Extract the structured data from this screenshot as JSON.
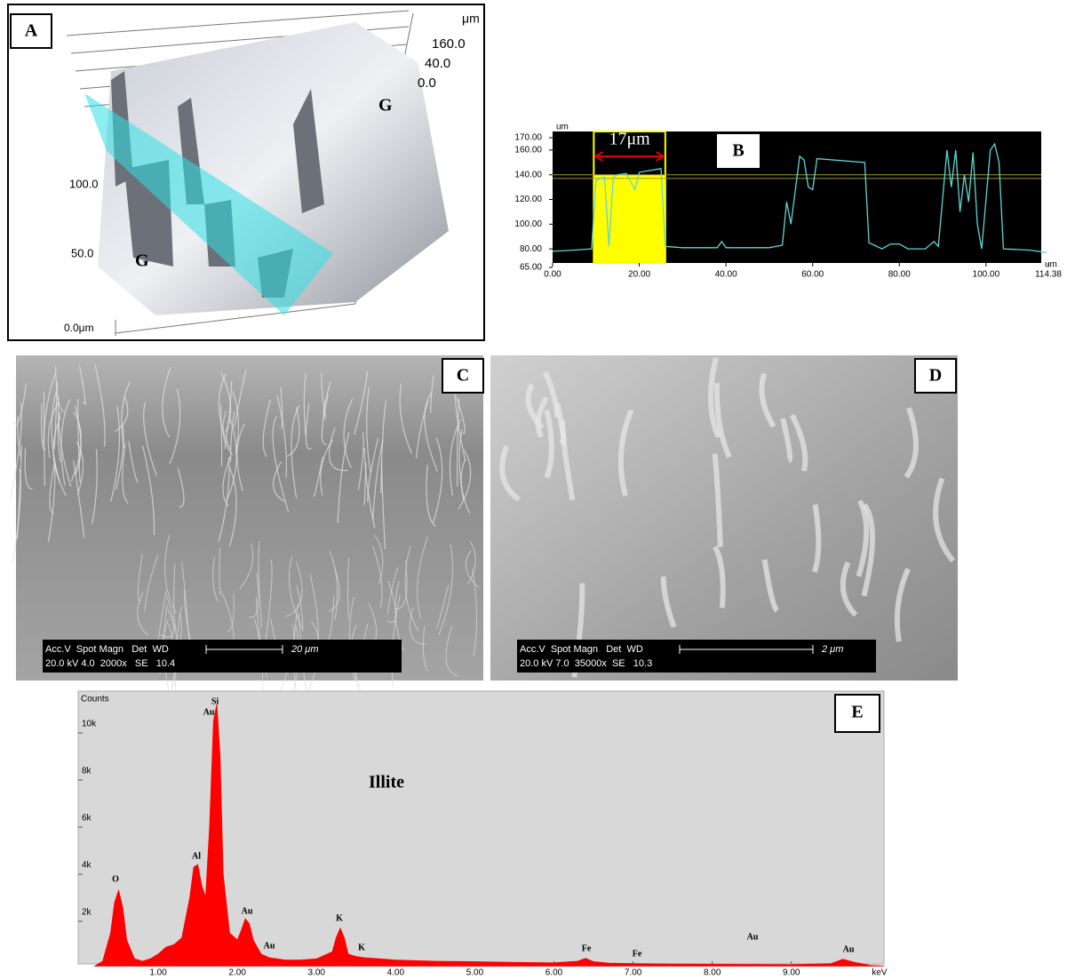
{
  "panels": {
    "A": {
      "label": "A",
      "unit": "μm",
      "zticks": [
        "160.0",
        "40.0",
        "0.0"
      ],
      "side_ticks": [
        "100.0",
        "50.0",
        "0.0μm"
      ],
      "grains": [
        "G",
        "G"
      ]
    },
    "C": {
      "label": "C",
      "info_header": "Acc.V  Spot Magn   Det  WD",
      "info_values": "20.0 kV 4.0  2000x   SE   10.4",
      "scale": "20 μm"
    },
    "D": {
      "label": "D",
      "info_header": "Acc.V  Spot Magn   Det  WD",
      "info_values": "20.0 kV 7.0  35000x  SE   10.3",
      "scale": "2 μm"
    }
  },
  "chart_data": [
    {
      "type": "line",
      "label": "B",
      "ylabel": "um",
      "xlabel": "um",
      "annotation": "17μm",
      "color": "#5fd6d6",
      "x": [
        0,
        5,
        9,
        10,
        11,
        12,
        13,
        14,
        15,
        17,
        19,
        20,
        25,
        26,
        30,
        38,
        39,
        40,
        50,
        53,
        54,
        55,
        57,
        58,
        59,
        60,
        61,
        72,
        73,
        76,
        78,
        80,
        82,
        86,
        88,
        89,
        91,
        92,
        93,
        94,
        95,
        96,
        97,
        98,
        99,
        101,
        102,
        103,
        104,
        110,
        114
      ],
      "values": [
        78,
        79,
        80,
        135,
        137,
        138,
        82,
        138,
        140,
        141,
        128,
        142,
        145,
        82,
        81,
        81,
        86,
        81,
        81,
        83,
        118,
        100,
        155,
        152,
        130,
        128,
        153,
        150,
        85,
        80,
        84,
        84,
        80,
        80,
        86,
        82,
        160,
        130,
        160,
        110,
        140,
        118,
        158,
        100,
        80,
        160,
        165,
        150,
        80,
        79,
        77
      ],
      "highlight": [
        9.5,
        26
      ],
      "highlight_color": "#ffff00",
      "reference_lines": [
        140,
        137
      ],
      "reference_color": "#9a9a30",
      "xlim": [
        0,
        114.38
      ],
      "ylim": [
        65,
        170
      ],
      "xticks": [
        {
          "value": 0,
          "label": "0.00"
        },
        {
          "value": 20,
          "label": "20.00"
        },
        {
          "value": 40,
          "label": "40.00"
        },
        {
          "value": 60,
          "label": "60.00"
        },
        {
          "value": 80,
          "label": "80.00"
        },
        {
          "value": 100,
          "label": "100.00"
        },
        114.38
      ],
      "yticks": [
        {
          "value": 65,
          "label": "65.00"
        },
        {
          "value": 80,
          "label": "80.00"
        },
        {
          "value": 100,
          "label": "100.00"
        },
        {
          "value": 120,
          "label": "120.00"
        },
        {
          "value": 140,
          "label": "140.00"
        },
        {
          "value": 160,
          "label": "160.00"
        },
        {
          "value": 170,
          "label": "170.00"
        }
      ]
    },
    {
      "type": "area",
      "label": "E",
      "ylabel": "Counts",
      "xlabel": "keV",
      "color": "#ff0000",
      "annotations": [
        "Si",
        "Au",
        "Al",
        "O",
        "Au",
        "Au",
        "K",
        "K",
        "Fe",
        "Fe",
        "Au",
        "Au",
        "Illite"
      ],
      "x": [
        0.2,
        0.3,
        0.4,
        0.45,
        0.5,
        0.55,
        0.6,
        0.7,
        0.8,
        0.9,
        1.0,
        1.1,
        1.2,
        1.3,
        1.4,
        1.45,
        1.5,
        1.55,
        1.6,
        1.65,
        1.7,
        1.74,
        1.78,
        1.82,
        1.9,
        2.0,
        2.05,
        2.1,
        2.15,
        2.2,
        2.3,
        2.4,
        2.5,
        2.6,
        2.8,
        3.0,
        3.2,
        3.25,
        3.3,
        3.35,
        3.4,
        3.5,
        3.6,
        3.8,
        4.0,
        4.5,
        5.0,
        5.5,
        6.0,
        6.3,
        6.4,
        6.5,
        6.7,
        7.0,
        7.5,
        8.0,
        8.5,
        9.0,
        9.5,
        9.65,
        9.8,
        10.0,
        10.17
      ],
      "values": [
        100,
        300,
        1500,
        2800,
        3300,
        2600,
        1200,
        400,
        300,
        400,
        600,
        900,
        1000,
        1300,
        3000,
        4300,
        4400,
        3500,
        3000,
        6000,
        10500,
        11200,
        9000,
        4000,
        1500,
        1200,
        1600,
        2100,
        1900,
        1200,
        600,
        450,
        400,
        350,
        350,
        400,
        700,
        1300,
        1700,
        1300,
        600,
        500,
        450,
        400,
        350,
        300,
        280,
        250,
        230,
        300,
        420,
        280,
        220,
        200,
        180,
        170,
        160,
        150,
        200,
        380,
        250,
        120,
        100
      ],
      "xlim": [
        0,
        10.17
      ],
      "ylim": [
        0,
        11700
      ],
      "xticks": [
        {
          "value": 1,
          "label": "1.00"
        },
        {
          "value": 2,
          "label": "2.00"
        },
        {
          "value": 3,
          "label": "3.00"
        },
        {
          "value": 4,
          "label": "4.00"
        },
        {
          "value": 5,
          "label": "5.00"
        },
        {
          "value": 6,
          "label": "6.00"
        },
        {
          "value": 7,
          "label": "7.00"
        },
        {
          "value": 8,
          "label": "8.00"
        },
        {
          "value": 9,
          "label": "9.00"
        }
      ],
      "yticks": [
        {
          "value": 2000,
          "label": "2k"
        },
        {
          "value": 4000,
          "label": "4k"
        },
        {
          "value": 6000,
          "label": "6k"
        },
        {
          "value": 8000,
          "label": "8k"
        },
        {
          "value": 10000,
          "label": "10k"
        }
      ]
    }
  ]
}
